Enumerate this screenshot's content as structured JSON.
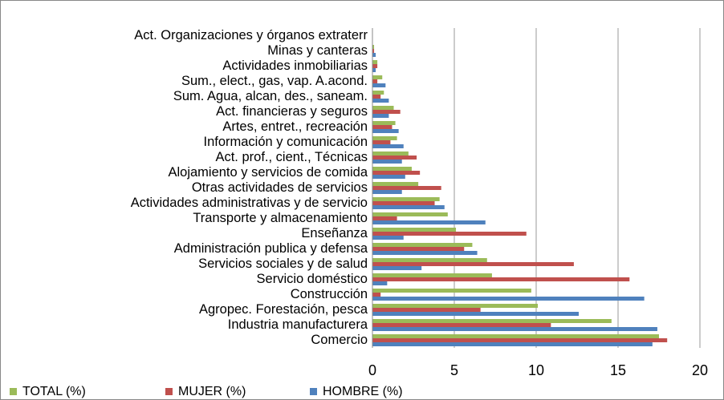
{
  "chart_data": {
    "type": "bar",
    "orientation": "horizontal",
    "categories": [
      "Act. Organizaciones y órganos extraterr",
      "Minas y canteras",
      "Actividades inmobiliarias",
      "Sum., elect., gas, vap. A.acond.",
      "Sum. Agua, alcan, des., saneam.",
      "Act. financieras y seguros",
      "Artes, entret., recreación",
      "Información y comunicación",
      "Act. prof., cient., Técnicas",
      "Alojamiento y servicios de comida",
      "Otras actividades de servicios",
      "Actividades administrativas y de servicio",
      "Transporte y almacenamiento",
      "Enseñanza",
      "Administración publica y defensa",
      "Servicios sociales y de salud",
      "Servicio doméstico",
      "Construcción",
      "Agropec. Forestación, pesca",
      "Industria manufacturera",
      "Comercio"
    ],
    "series": [
      {
        "name": "TOTAL (%)",
        "color": "#9bbb59",
        "values": [
          0.0,
          0.1,
          0.3,
          0.6,
          0.7,
          1.3,
          1.4,
          1.5,
          2.2,
          2.4,
          2.8,
          4.1,
          4.6,
          5.1,
          6.1,
          7.0,
          7.3,
          9.7,
          10.1,
          14.6,
          17.5
        ]
      },
      {
        "name": "MUJER (%)",
        "color": "#c0504d",
        "values": [
          0.0,
          0.1,
          0.3,
          0.3,
          0.5,
          1.7,
          1.2,
          1.1,
          2.7,
          2.9,
          4.2,
          3.8,
          1.5,
          9.4,
          5.6,
          12.3,
          15.7,
          0.5,
          6.6,
          10.9,
          18.0
        ]
      },
      {
        "name": "HOMBRE (%)",
        "color": "#4f81bd",
        "values": [
          0.0,
          0.2,
          0.2,
          0.8,
          1.0,
          1.0,
          1.6,
          1.9,
          1.8,
          2.0,
          1.8,
          4.4,
          6.9,
          1.9,
          6.4,
          3.0,
          0.9,
          16.6,
          12.6,
          17.4,
          17.1
        ]
      }
    ],
    "xlim": [
      0,
      20
    ],
    "xticks": [
      0,
      5,
      10,
      15,
      20
    ],
    "grid": true,
    "legend": "bottom"
  }
}
